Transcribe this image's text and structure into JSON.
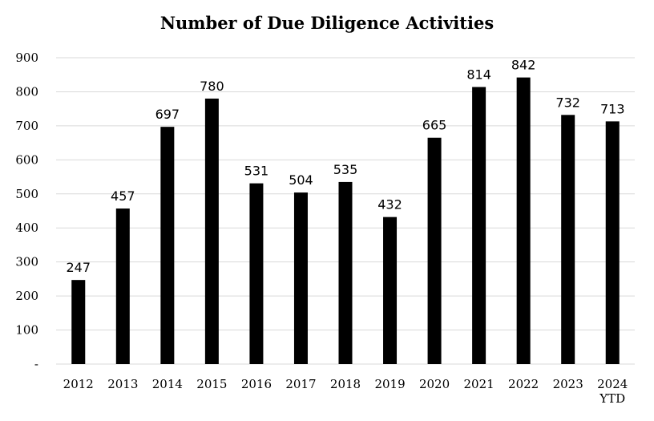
{
  "chart_data": {
    "type": "bar",
    "title": "Number of Due Diligence Activities",
    "xlabel": "",
    "ylabel": "",
    "categories": [
      "2012",
      "2013",
      "2014",
      "2015",
      "2016",
      "2017",
      "2018",
      "2019",
      "2020",
      "2021",
      "2022",
      "2023",
      "2024 YTD"
    ],
    "values": [
      247,
      457,
      697,
      780,
      531,
      504,
      535,
      432,
      665,
      814,
      842,
      732,
      713
    ],
    "ylim": [
      0,
      900
    ],
    "yticks": [
      "-",
      "100",
      "200",
      "300",
      "400",
      "500",
      "600",
      "700",
      "800",
      "900"
    ],
    "grid": true,
    "legend": "none",
    "bar_color": "#000000",
    "grid_color": "#d9d9d9"
  }
}
